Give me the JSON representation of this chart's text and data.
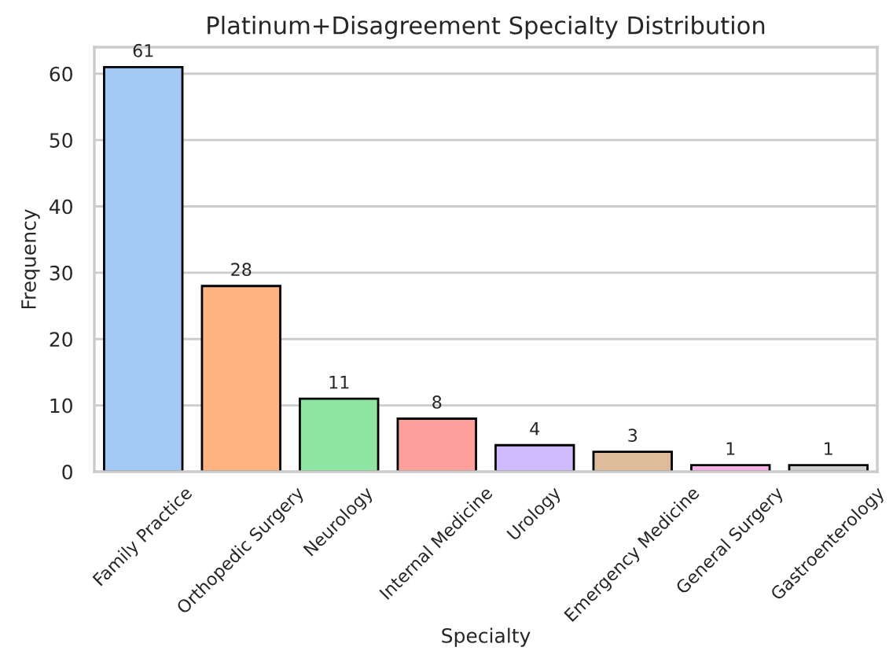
{
  "chart_data": {
    "type": "bar",
    "title": "Platinum+Disagreement Specialty Distribution",
    "xlabel": "Specialty",
    "ylabel": "Frequency",
    "categories": [
      "Family Practice",
      "Orthopedic Surgery",
      "Neurology",
      "Internal Medicine",
      "Urology",
      "Emergency Medicine",
      "General Surgery",
      "Gastroenterology"
    ],
    "values": [
      61,
      28,
      11,
      8,
      4,
      3,
      1,
      1
    ],
    "colors": [
      "#a1c9f4",
      "#ffb482",
      "#8de5a1",
      "#ff9f9b",
      "#d0bbff",
      "#debb9b",
      "#fab0e4",
      "#cfcfcf"
    ],
    "ylim": [
      0,
      64
    ],
    "yticks": [
      0,
      10,
      20,
      30,
      40,
      50,
      60
    ],
    "grid": "y",
    "data_labels": true
  }
}
